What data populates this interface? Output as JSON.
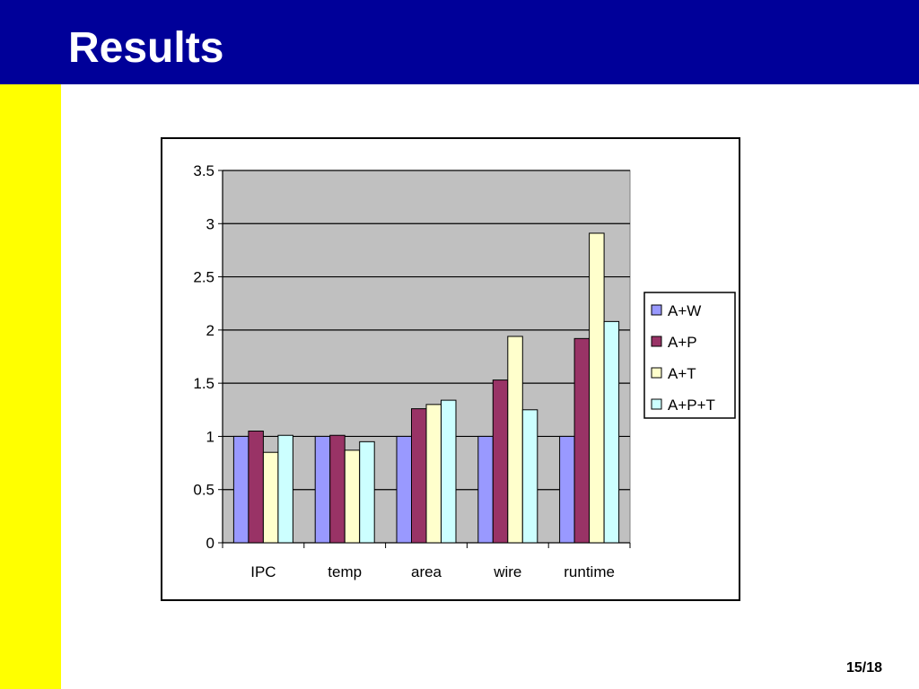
{
  "slide": {
    "title": "Results",
    "page_number": "15/18"
  },
  "colors": {
    "title_bar": "#000099",
    "left_band": "#ffff00",
    "plot_area": "#c0c0c0"
  },
  "chart_data": {
    "type": "bar",
    "title": "",
    "xlabel": "",
    "ylabel": "",
    "categories": [
      "IPC",
      "temp",
      "area",
      "wire",
      "runtime"
    ],
    "ylim": [
      0,
      3.5
    ],
    "yticks": [
      0,
      0.5,
      1,
      1.5,
      2,
      2.5,
      3,
      3.5
    ],
    "ytick_labels": [
      "0",
      "0.5",
      "1",
      "1.5",
      "2",
      "2.5",
      "3",
      "3.5"
    ],
    "grid": true,
    "legend_position": "right",
    "series": [
      {
        "name": "A+W",
        "color": "#9999ff",
        "values": [
          1.0,
          1.0,
          1.0,
          1.0,
          1.0
        ]
      },
      {
        "name": "A+P",
        "color": "#993366",
        "values": [
          1.05,
          1.01,
          1.26,
          1.53,
          1.92
        ]
      },
      {
        "name": "A+T",
        "color": "#ffffcc",
        "values": [
          0.85,
          0.87,
          1.3,
          1.94,
          2.91
        ]
      },
      {
        "name": "A+P+T",
        "color": "#ccffff",
        "values": [
          1.01,
          0.95,
          1.34,
          1.25,
          2.08
        ]
      }
    ]
  }
}
